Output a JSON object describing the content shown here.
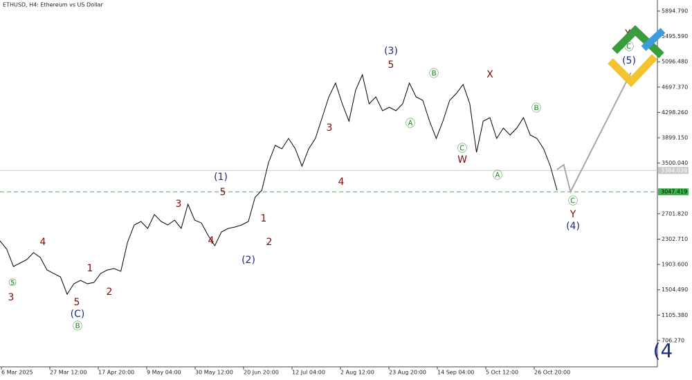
{
  "chart_data": {
    "type": "line",
    "title": "ETHUSD, H4:  Ethereum vs US Dollar",
    "x_labels": [
      "6 Mar 2025",
      "27 Mar 12:00",
      "17 Apr 20:00",
      "9 May 04:00",
      "30 May 12:00",
      "20 Jun 20:00",
      "12 Jul 04:00",
      "2 Aug 12:00",
      "23 Aug 20:00",
      "14 Sep 04:00",
      "5 Oct 12:00",
      "26 Oct 20:00"
    ],
    "series": [
      {
        "color": "#000000",
        "values": [
          2275,
          2144,
          1872,
          1926,
          1981,
          2090,
          2013,
          1817,
          1762,
          1708,
          1435,
          1599,
          1653,
          1599,
          1621,
          1762,
          1817,
          1839,
          1795,
          2253,
          2526,
          2580,
          2471,
          2689,
          2580,
          2526,
          2602,
          2471,
          2853,
          2602,
          2558,
          2362,
          2199,
          2417,
          2471,
          2493,
          2526,
          2580,
          2962,
          3071,
          3507,
          3780,
          3725,
          3889,
          3725,
          3452,
          3725,
          3889,
          4216,
          4543,
          4761,
          4434,
          4161,
          4652,
          4892,
          4434,
          4543,
          4325,
          4379,
          4325,
          4434,
          4761,
          4543,
          4488,
          4161,
          3889,
          4161,
          4488,
          4597,
          4739,
          4434,
          3670,
          4161,
          4216,
          3889,
          4052,
          3943,
          4052,
          4216,
          3943,
          3889,
          3725,
          3452,
          3071,
          null,
          null,
          null,
          null,
          null,
          null,
          null,
          null,
          null,
          null,
          null
        ]
      },
      {
        "color": "#a6a6a6",
        "values": [
          null,
          null,
          null,
          null,
          null,
          null,
          null,
          null,
          null,
          null,
          null,
          null,
          null,
          null,
          null,
          null,
          null,
          null,
          null,
          null,
          null,
          null,
          null,
          null,
          null,
          null,
          null,
          null,
          null,
          null,
          null,
          null,
          null,
          null,
          null,
          null,
          null,
          null,
          null,
          null,
          null,
          null,
          null,
          null,
          null,
          null,
          null,
          null,
          null,
          null,
          null,
          null,
          null,
          null,
          null,
          null,
          null,
          null,
          null,
          null,
          null,
          null,
          null,
          null,
          null,
          null,
          null,
          null,
          null,
          null,
          null,
          null,
          null,
          null,
          null,
          null,
          null,
          null,
          null,
          null,
          null,
          null,
          null,
          3398,
          3474,
          3049,
          3257,
          3466,
          3674,
          3882,
          4091,
          4299,
          4507,
          4716,
          4924
        ]
      }
    ],
    "ylim": [
      290.8,
      6069.2
    ],
    "yticks": [
      {
        "value": 5894.79,
        "label": "5894.790"
      },
      {
        "value": 5495.59,
        "label": "5495.590"
      },
      {
        "value": 5096.48,
        "label": "5096.480"
      },
      {
        "value": 4697.37,
        "label": "4697.370"
      },
      {
        "value": 4298.26,
        "label": "4298.260"
      },
      {
        "value": 3899.15,
        "label": "3899.150"
      },
      {
        "value": 3500.04,
        "label": "3500.040"
      },
      {
        "value": 2701.82,
        "label": "2701.820"
      },
      {
        "value": 2302.71,
        "label": "2302.710"
      },
      {
        "value": 1903.6,
        "label": "1903.600"
      },
      {
        "value": 1504.49,
        "label": "1504.490"
      },
      {
        "value": 1105.38,
        "label": "1105.380"
      },
      {
        "value": 706.27,
        "label": "706.270"
      }
    ],
    "hlines": [
      {
        "value": 3384.039,
        "color": "#c8c8c8"
      },
      {
        "value": 3047.419,
        "color": "#3cb44b"
      }
    ],
    "annotations": [
      "⑤",
      "3",
      "4",
      "1",
      "2",
      "5",
      "(C)",
      "Ⓑ",
      "3",
      "5",
      "(1)",
      "4",
      "1",
      "2",
      "(2)",
      "3",
      "4",
      "(3)",
      "5",
      "Ⓐ",
      "Ⓑ",
      "X",
      "Ⓒ",
      "W",
      "Ⓐ",
      "Ⓑ",
      "Ⓒ",
      "Y",
      "(4)",
      "X",
      "Ⓒ",
      "(5)",
      "(4"
    ]
  }
}
